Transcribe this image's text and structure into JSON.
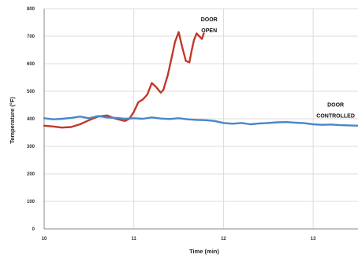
{
  "chart_data": {
    "type": "line",
    "title": "",
    "xlabel": "Time (min)",
    "ylabel": "Temperature (°F)",
    "xlim": [
      10,
      13.5
    ],
    "ylim": [
      0,
      800
    ],
    "x_ticks": [
      10,
      11,
      12,
      13
    ],
    "y_ticks": [
      0,
      100,
      200,
      300,
      400,
      500,
      600,
      700,
      800
    ],
    "grid": true,
    "legend": "none",
    "series": [
      {
        "name": "DOOR OPEN",
        "color": "#c0392b",
        "points": [
          [
            10.0,
            375
          ],
          [
            10.1,
            372
          ],
          [
            10.2,
            368
          ],
          [
            10.3,
            370
          ],
          [
            10.4,
            380
          ],
          [
            10.5,
            395
          ],
          [
            10.6,
            408
          ],
          [
            10.7,
            412
          ],
          [
            10.8,
            400
          ],
          [
            10.9,
            392
          ],
          [
            10.95,
            400
          ],
          [
            11.0,
            425
          ],
          [
            11.05,
            460
          ],
          [
            11.1,
            470
          ],
          [
            11.15,
            488
          ],
          [
            11.2,
            530
          ],
          [
            11.25,
            515
          ],
          [
            11.3,
            495
          ],
          [
            11.33,
            505
          ],
          [
            11.38,
            560
          ],
          [
            11.42,
            620
          ],
          [
            11.46,
            680
          ],
          [
            11.5,
            715
          ],
          [
            11.54,
            660
          ],
          [
            11.58,
            610
          ],
          [
            11.62,
            605
          ],
          [
            11.64,
            640
          ],
          [
            11.67,
            685
          ],
          [
            11.7,
            710
          ],
          [
            11.73,
            700
          ],
          [
            11.76,
            690
          ],
          [
            11.78,
            710
          ]
        ]
      },
      {
        "name": "DOOR CONTROLLED",
        "color": "#4a86c8",
        "points": [
          [
            10.0,
            402
          ],
          [
            10.1,
            398
          ],
          [
            10.2,
            400
          ],
          [
            10.3,
            403
          ],
          [
            10.4,
            408
          ],
          [
            10.5,
            402
          ],
          [
            10.6,
            410
          ],
          [
            10.7,
            405
          ],
          [
            10.8,
            403
          ],
          [
            10.9,
            400
          ],
          [
            11.0,
            402
          ],
          [
            11.1,
            400
          ],
          [
            11.2,
            405
          ],
          [
            11.3,
            401
          ],
          [
            11.4,
            399
          ],
          [
            11.5,
            402
          ],
          [
            11.6,
            398
          ],
          [
            11.7,
            396
          ],
          [
            11.8,
            395
          ],
          [
            11.9,
            392
          ],
          [
            12.0,
            385
          ],
          [
            12.1,
            382
          ],
          [
            12.2,
            385
          ],
          [
            12.3,
            380
          ],
          [
            12.4,
            383
          ],
          [
            12.5,
            385
          ],
          [
            12.6,
            387
          ],
          [
            12.7,
            388
          ],
          [
            12.8,
            386
          ],
          [
            12.9,
            384
          ],
          [
            13.0,
            380
          ],
          [
            13.1,
            378
          ],
          [
            13.2,
            379
          ],
          [
            13.3,
            377
          ],
          [
            13.4,
            376
          ],
          [
            13.5,
            375
          ]
        ]
      }
    ],
    "annotations": [
      {
        "text": "DOOR",
        "x": 11.84,
        "y": 755
      },
      {
        "text": "OPEN",
        "x": 11.84,
        "y": 715
      },
      {
        "text": "DOOR",
        "x": 13.25,
        "y": 445
      },
      {
        "text": "CONTROLLED",
        "x": 13.25,
        "y": 405
      }
    ]
  }
}
